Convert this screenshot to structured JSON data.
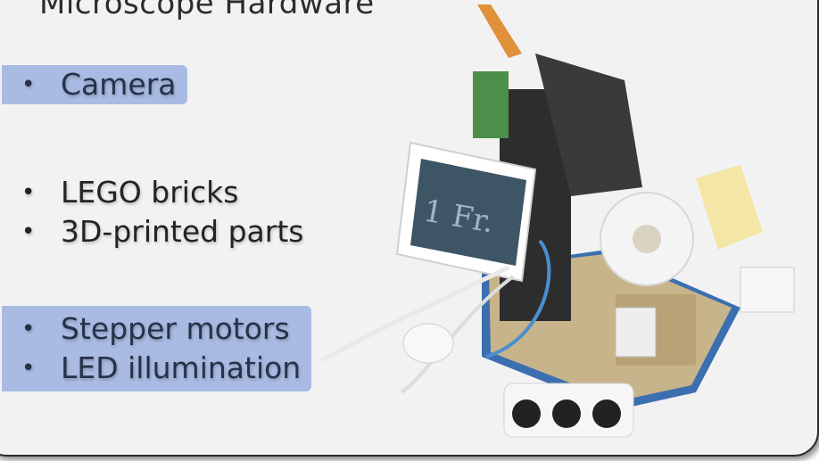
{
  "slide": {
    "heading": "Microscope Hardware",
    "groups": [
      {
        "highlighted": true,
        "items": [
          "Camera"
        ]
      },
      {
        "highlighted": false,
        "items": [
          "LEGO bricks",
          "3D-printed parts"
        ]
      },
      {
        "highlighted": true,
        "items": [
          "Stepper motors",
          "LED illumination"
        ]
      }
    ],
    "screen_text": "1 Fr."
  },
  "colors": {
    "highlight": "#a9bbe2",
    "text_blue": "#263249",
    "background": "#f2f2f3"
  }
}
